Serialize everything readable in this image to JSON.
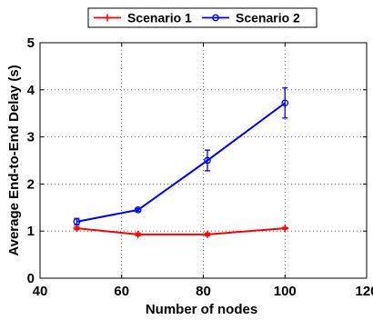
{
  "chart_data": {
    "type": "line",
    "xlabel": "Number of nodes",
    "ylabel": "Average End-to-End Delay (s)",
    "xlim": [
      40,
      120
    ],
    "ylim": [
      0,
      5
    ],
    "xticks": [
      40,
      60,
      80,
      100,
      120
    ],
    "yticks": [
      0,
      1,
      2,
      3,
      4,
      5
    ],
    "xtick_labels": [
      "40",
      "60",
      "80",
      "100",
      "120"
    ],
    "ytick_labels": [
      "0",
      "1",
      "2",
      "3",
      "4",
      "5"
    ],
    "grid": true,
    "legend_position": "top",
    "series": [
      {
        "name": "Scenario 1",
        "color": "#ff0000",
        "marker": "plus",
        "x": [
          49,
          64,
          81,
          100
        ],
        "y": [
          1.06,
          0.93,
          0.93,
          1.06
        ],
        "error": [
          0.03,
          0.03,
          0.03,
          0.02
        ]
      },
      {
        "name": "Scenario 2",
        "color": "#0000ff",
        "marker": "circle",
        "x": [
          49,
          64,
          81,
          100
        ],
        "y": [
          1.2,
          1.45,
          2.5,
          3.72
        ],
        "error": [
          0.07,
          0.03,
          0.22,
          0.32
        ]
      }
    ]
  }
}
